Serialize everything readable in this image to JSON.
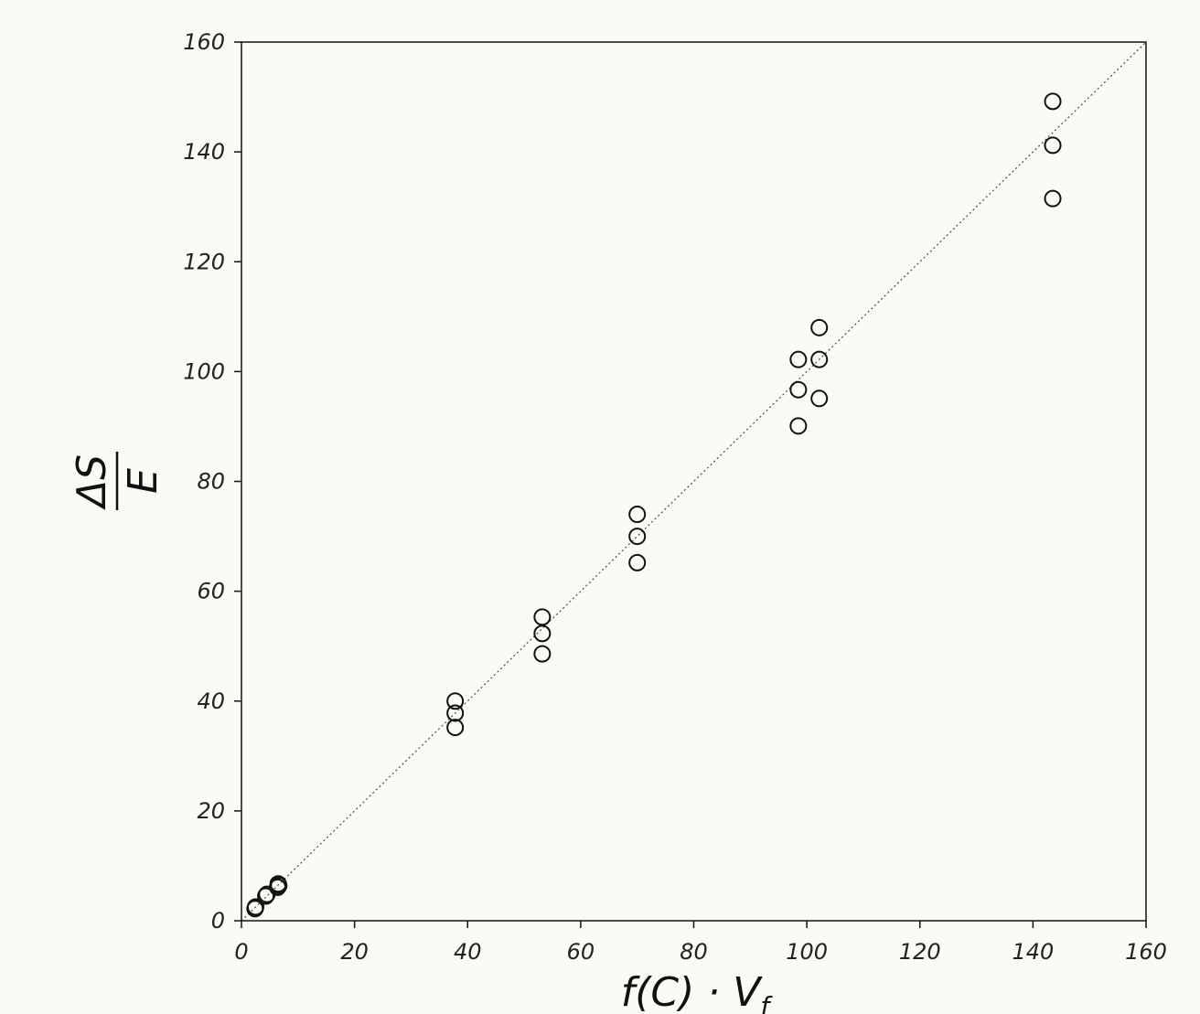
{
  "chart_data": {
    "type": "scatter",
    "title": "",
    "xlabel_parts": {
      "base": "f(C) · V",
      "sub": "f"
    },
    "ylabel_parts": {
      "num": "ΔS",
      "den": "E"
    },
    "xlim": [
      0,
      160
    ],
    "ylim": [
      0,
      160
    ],
    "xticks": [
      "0",
      "20",
      "40",
      "60",
      "80",
      "100",
      "120",
      "140",
      "160"
    ],
    "yticks": [
      "0",
      "20",
      "40",
      "60",
      "80",
      "100",
      "120",
      "140",
      "160"
    ],
    "grid": false,
    "reference_line": {
      "style": "dotted",
      "from": [
        0,
        0
      ],
      "to": [
        160,
        160
      ]
    },
    "points": [
      {
        "x": 2.5,
        "y": 2.5
      },
      {
        "x": 2.4,
        "y": 2.2
      },
      {
        "x": 4.3,
        "y": 4.5
      },
      {
        "x": 4.5,
        "y": 4.8
      },
      {
        "x": 6.4,
        "y": 6.1
      },
      {
        "x": 6.5,
        "y": 6.7
      },
      {
        "x": 6.6,
        "y": 6.4
      },
      {
        "x": 37.8,
        "y": 40.0
      },
      {
        "x": 37.8,
        "y": 37.8
      },
      {
        "x": 37.8,
        "y": 35.2
      },
      {
        "x": 53.2,
        "y": 55.3
      },
      {
        "x": 53.2,
        "y": 52.3
      },
      {
        "x": 53.2,
        "y": 48.6
      },
      {
        "x": 70.0,
        "y": 74.0
      },
      {
        "x": 70.0,
        "y": 70.0
      },
      {
        "x": 70.0,
        "y": 65.2
      },
      {
        "x": 98.5,
        "y": 102.2
      },
      {
        "x": 98.5,
        "y": 96.7
      },
      {
        "x": 98.5,
        "y": 90.1
      },
      {
        "x": 102.2,
        "y": 108.0
      },
      {
        "x": 102.2,
        "y": 102.2
      },
      {
        "x": 102.2,
        "y": 95.1
      },
      {
        "x": 143.5,
        "y": 149.2
      },
      {
        "x": 143.5,
        "y": 141.2
      },
      {
        "x": 143.5,
        "y": 131.5
      }
    ]
  }
}
